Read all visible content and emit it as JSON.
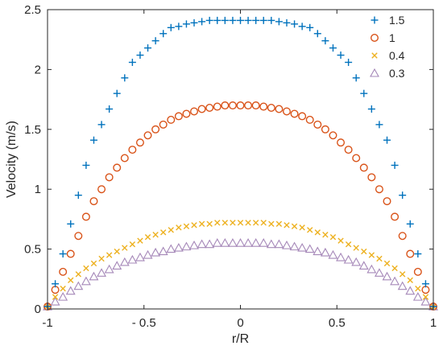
{
  "chart_data": {
    "type": "scatter",
    "title": "",
    "xlabel": "r/R",
    "ylabel": "Velocity (m/s)",
    "xlim": [
      -1,
      1
    ],
    "ylim": [
      0,
      2.5
    ],
    "x_ticks": [
      -1,
      -0.5,
      0,
      0.5,
      1
    ],
    "x_tick_labels": [
      "-1",
      "- 0.5",
      "0",
      "0.5",
      "1"
    ],
    "y_ticks": [
      0,
      0.5,
      1,
      1.5,
      2,
      2.5
    ],
    "y_tick_labels": [
      "0",
      "0.5",
      "1",
      "1.5",
      "2",
      "2.5"
    ],
    "grid": false,
    "legend_position": "top-right",
    "series": [
      {
        "name": "1.5",
        "marker": "plus",
        "color": "#0072BD",
        "x": [
          -1,
          -0.96,
          -0.92,
          -0.88,
          -0.84,
          -0.8,
          -0.76,
          -0.72,
          -0.68,
          -0.64,
          -0.6,
          -0.56,
          -0.52,
          -0.48,
          -0.44,
          -0.4,
          -0.36,
          -0.32,
          -0.28,
          -0.24,
          -0.2,
          -0.16,
          -0.12,
          -0.08,
          -0.04,
          0,
          0.04,
          0.08,
          0.12,
          0.16,
          0.2,
          0.24,
          0.28,
          0.32,
          0.36,
          0.4,
          0.44,
          0.48,
          0.52,
          0.56,
          0.6,
          0.64,
          0.68,
          0.72,
          0.76,
          0.8,
          0.84,
          0.88,
          0.92,
          0.96,
          1
        ],
        "y": [
          0.02,
          0.21,
          0.46,
          0.71,
          0.95,
          1.2,
          1.41,
          1.54,
          1.67,
          1.8,
          1.93,
          2.06,
          2.12,
          2.18,
          2.24,
          2.3,
          2.35,
          2.36,
          2.38,
          2.39,
          2.4,
          2.41,
          2.41,
          2.41,
          2.41,
          2.41,
          2.41,
          2.41,
          2.41,
          2.41,
          2.4,
          2.39,
          2.38,
          2.36,
          2.35,
          2.3,
          2.24,
          2.18,
          2.12,
          2.06,
          1.93,
          1.8,
          1.67,
          1.54,
          1.41,
          1.2,
          0.95,
          0.71,
          0.46,
          0.21,
          0.02
        ]
      },
      {
        "name": "1",
        "marker": "circle",
        "color": "#D95319",
        "x": [
          -1,
          -0.96,
          -0.92,
          -0.88,
          -0.84,
          -0.8,
          -0.76,
          -0.72,
          -0.68,
          -0.64,
          -0.6,
          -0.56,
          -0.52,
          -0.48,
          -0.44,
          -0.4,
          -0.36,
          -0.32,
          -0.28,
          -0.24,
          -0.2,
          -0.16,
          -0.12,
          -0.08,
          -0.04,
          0,
          0.04,
          0.08,
          0.12,
          0.16,
          0.2,
          0.24,
          0.28,
          0.32,
          0.36,
          0.4,
          0.44,
          0.48,
          0.52,
          0.56,
          0.6,
          0.64,
          0.68,
          0.72,
          0.76,
          0.8,
          0.84,
          0.88,
          0.92,
          0.96,
          1
        ],
        "y": [
          0.02,
          0.16,
          0.31,
          0.46,
          0.61,
          0.77,
          0.9,
          1.0,
          1.1,
          1.18,
          1.26,
          1.33,
          1.39,
          1.45,
          1.5,
          1.54,
          1.58,
          1.61,
          1.63,
          1.65,
          1.67,
          1.68,
          1.69,
          1.7,
          1.7,
          1.7,
          1.7,
          1.7,
          1.69,
          1.68,
          1.67,
          1.65,
          1.63,
          1.61,
          1.58,
          1.54,
          1.5,
          1.45,
          1.39,
          1.33,
          1.26,
          1.18,
          1.1,
          1.0,
          0.9,
          0.77,
          0.61,
          0.46,
          0.31,
          0.16,
          0.02
        ]
      },
      {
        "name": "0.4",
        "marker": "x",
        "color": "#EDB120",
        "x": [
          -1,
          -0.96,
          -0.92,
          -0.88,
          -0.84,
          -0.8,
          -0.76,
          -0.72,
          -0.68,
          -0.64,
          -0.6,
          -0.56,
          -0.52,
          -0.48,
          -0.44,
          -0.4,
          -0.36,
          -0.32,
          -0.28,
          -0.24,
          -0.2,
          -0.16,
          -0.12,
          -0.08,
          -0.04,
          0,
          0.04,
          0.08,
          0.12,
          0.16,
          0.2,
          0.24,
          0.28,
          0.32,
          0.36,
          0.4,
          0.44,
          0.48,
          0.52,
          0.56,
          0.6,
          0.64,
          0.68,
          0.72,
          0.76,
          0.8,
          0.84,
          0.88,
          0.92,
          0.96,
          1
        ],
        "y": [
          0.02,
          0.1,
          0.17,
          0.24,
          0.29,
          0.34,
          0.38,
          0.42,
          0.45,
          0.48,
          0.51,
          0.54,
          0.57,
          0.6,
          0.62,
          0.64,
          0.66,
          0.68,
          0.69,
          0.7,
          0.71,
          0.71,
          0.72,
          0.72,
          0.72,
          0.72,
          0.72,
          0.72,
          0.72,
          0.71,
          0.71,
          0.7,
          0.69,
          0.68,
          0.66,
          0.64,
          0.62,
          0.6,
          0.57,
          0.54,
          0.51,
          0.48,
          0.45,
          0.42,
          0.38,
          0.34,
          0.29,
          0.24,
          0.17,
          0.1,
          0.02
        ]
      },
      {
        "name": "0.3",
        "marker": "triangle",
        "color": "#A587B8",
        "x": [
          -1,
          -0.96,
          -0.92,
          -0.88,
          -0.84,
          -0.8,
          -0.76,
          -0.72,
          -0.68,
          -0.64,
          -0.6,
          -0.56,
          -0.52,
          -0.48,
          -0.44,
          -0.4,
          -0.36,
          -0.32,
          -0.28,
          -0.24,
          -0.2,
          -0.16,
          -0.12,
          -0.08,
          -0.04,
          0,
          0.04,
          0.08,
          0.12,
          0.16,
          0.2,
          0.24,
          0.28,
          0.32,
          0.36,
          0.4,
          0.44,
          0.48,
          0.52,
          0.56,
          0.6,
          0.64,
          0.68,
          0.72,
          0.76,
          0.8,
          0.84,
          0.88,
          0.92,
          0.96,
          1
        ],
        "y": [
          0.02,
          0.06,
          0.1,
          0.15,
          0.19,
          0.23,
          0.27,
          0.3,
          0.33,
          0.36,
          0.39,
          0.41,
          0.43,
          0.45,
          0.47,
          0.48,
          0.5,
          0.51,
          0.52,
          0.53,
          0.54,
          0.54,
          0.55,
          0.55,
          0.55,
          0.55,
          0.55,
          0.55,
          0.55,
          0.54,
          0.54,
          0.53,
          0.52,
          0.51,
          0.5,
          0.48,
          0.47,
          0.45,
          0.43,
          0.41,
          0.39,
          0.36,
          0.33,
          0.3,
          0.27,
          0.23,
          0.19,
          0.15,
          0.1,
          0.06,
          0.02
        ]
      }
    ]
  }
}
